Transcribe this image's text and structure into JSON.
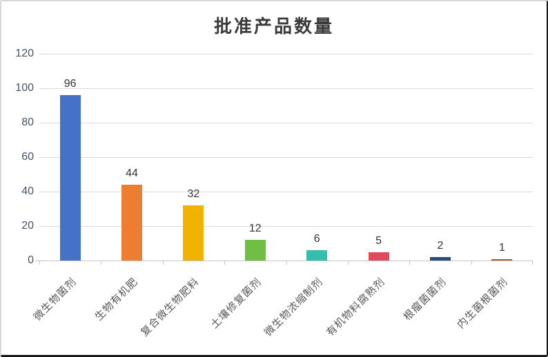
{
  "window": {
    "background": "#ffffff",
    "frame_dark_color": "#161616",
    "frame_light_color": "#d7d7d7"
  },
  "chart_data": {
    "type": "bar",
    "title": "批准产品数量",
    "categories": [
      "微生物菌剂",
      "生物有机肥",
      "复合微生物肥料",
      "土壤修复菌剂",
      "微生物浓缩制剂",
      "有机物料腐熟剂",
      "根瘤菌菌剂",
      "内生菌根菌剂"
    ],
    "values": [
      96,
      44,
      32,
      12,
      6,
      5,
      2,
      1
    ],
    "data_labels": [
      "96",
      "44",
      "32",
      "12",
      "6",
      "5",
      "2",
      "1"
    ],
    "bar_colors": [
      "#4472C7",
      "#ED7D31",
      "#F0B400",
      "#70BF44",
      "#33BFAC",
      "#E2495B",
      "#2A4B7C",
      "#B05F1F"
    ],
    "yticks": [
      0,
      20,
      40,
      60,
      80,
      100,
      120
    ],
    "ylim": [
      0,
      120
    ],
    "xlabel": "",
    "ylabel": "",
    "grid": true,
    "legend": "none",
    "gridline_color": "#d9d9d9",
    "axis_color": "#c6c6c6",
    "ytick_label_color": "#44546a",
    "xtick_label_color": "#595959",
    "data_label_color": "#333333",
    "title_color": "#3a3a3a"
  }
}
